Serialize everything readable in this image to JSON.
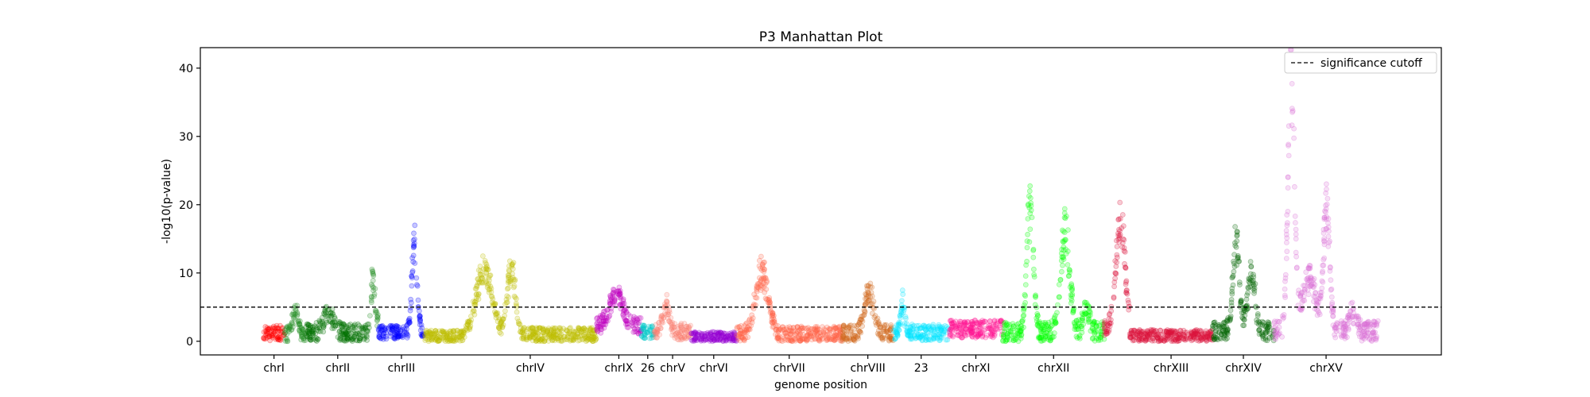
{
  "chart_data": {
    "type": "scatter",
    "title": "P3 Manhattan Plot",
    "xlabel": "genome position",
    "ylabel": "-log10(p-value)",
    "ylim": [
      -2,
      43
    ],
    "yticks": [
      0,
      10,
      20,
      30,
      40
    ],
    "grid": false,
    "legend": {
      "placement": "top-right",
      "entries": [
        {
          "label": "significance cutoff",
          "style": "dashed",
          "color": "#000000"
        }
      ]
    },
    "threshold": {
      "value": 5,
      "style": "dashed",
      "color": "#000000"
    },
    "chromosomes": [
      {
        "label": "chrI",
        "show_label": true,
        "color": "#ff0000",
        "start": 0,
        "end": 23,
        "baseline": 1.0,
        "noise": 1.3,
        "peaks": []
      },
      {
        "label": "",
        "show_label": false,
        "color": "#228b22",
        "start": 23,
        "end": 47,
        "baseline": 0.8,
        "noise": 1.2,
        "peaks": [
          [
            35,
            3.5,
            5
          ]
        ]
      },
      {
        "label": "chrII",
        "show_label": true,
        "color": "#007000",
        "start": 47,
        "end": 117,
        "baseline": 1.2,
        "noise": 1.4,
        "peaks": [
          [
            72,
            3,
            8
          ]
        ]
      },
      {
        "label": "",
        "show_label": false,
        "color": "#228b22",
        "start": 117,
        "end": 127,
        "baseline": 3.0,
        "noise": 1.5,
        "peaks": [
          [
            121,
            6,
            3
          ]
        ]
      },
      {
        "label": "chrIII",
        "show_label": true,
        "color": "#0000ff",
        "start": 127,
        "end": 178,
        "baseline": 1.3,
        "noise": 1.0,
        "peaks": [
          [
            167,
            13.5,
            4
          ]
        ]
      },
      {
        "label": "",
        "show_label": false,
        "color": "#bdbd00",
        "start": 178,
        "end": 222,
        "baseline": 0.8,
        "noise": 0.8,
        "peaks": []
      },
      {
        "label": "chrIV",
        "show_label": true,
        "color": "#bdbd00",
        "start": 222,
        "end": 368,
        "baseline": 1.0,
        "noise": 1.0,
        "peaks": [
          [
            244,
            9.5,
            12
          ],
          [
            274,
            10,
            6
          ]
        ]
      },
      {
        "label": "chrIX",
        "show_label": true,
        "color": "#c000c0",
        "start": 368,
        "end": 418,
        "baseline": 2.3,
        "noise": 1.3,
        "peaks": [
          [
            390,
            4.5,
            10
          ]
        ]
      },
      {
        "label": "26",
        "show_label": true,
        "color": "#00c8c8",
        "start": 418,
        "end": 432,
        "baseline": 1.4,
        "noise": 1.0,
        "peaks": []
      },
      {
        "label": "chrV",
        "show_label": true,
        "color": "#fa8072",
        "start": 432,
        "end": 473,
        "baseline": 1.4,
        "noise": 1.2,
        "peaks": [
          [
            445,
            4,
            5
          ]
        ]
      },
      {
        "label": "chrVI",
        "show_label": true,
        "color": "#9400d3",
        "start": 473,
        "end": 523,
        "baseline": 0.6,
        "noise": 0.8,
        "peaks": []
      },
      {
        "label": "chrVII",
        "show_label": true,
        "color": "#ff6347",
        "start": 523,
        "end": 640,
        "baseline": 1.0,
        "noise": 1.2,
        "peaks": [
          [
            551,
            9,
            10
          ]
        ]
      },
      {
        "label": "chrVIII",
        "show_label": true,
        "color": "#d2691e",
        "start": 640,
        "end": 697,
        "baseline": 1.2,
        "noise": 1.2,
        "peaks": [
          [
            670,
            6,
            7
          ]
        ]
      },
      {
        "label": "23",
        "show_label": true,
        "color": "#00e5ff",
        "start": 697,
        "end": 758,
        "baseline": 1.3,
        "noise": 1.2,
        "peaks": [
          [
            707,
            4.5,
            3
          ]
        ]
      },
      {
        "label": "chrXI",
        "show_label": true,
        "color": "#ff1493",
        "start": 758,
        "end": 818,
        "baseline": 1.8,
        "noise": 1.3,
        "peaks": []
      },
      {
        "label": "chrXII",
        "show_label": true,
        "color": "#00ff00",
        "start": 818,
        "end": 930,
        "baseline": 1.3,
        "noise": 1.5,
        "peaks": [
          [
            848,
            18,
            5
          ],
          [
            887,
            14,
            7
          ],
          [
            910,
            3.5,
            5
          ]
        ]
      },
      {
        "label": "",
        "show_label": false,
        "color": "#dc143c",
        "start": 930,
        "end": 958,
        "baseline": 2.0,
        "noise": 1.2,
        "peaks": [
          [
            948,
            16,
            7
          ]
        ]
      },
      {
        "label": "chrXIII",
        "show_label": true,
        "color": "#dc143c",
        "start": 958,
        "end": 1050,
        "baseline": 0.8,
        "noise": 0.9,
        "peaks": []
      },
      {
        "label": "chrXIV",
        "show_label": true,
        "color": "#006400",
        "start": 1050,
        "end": 1118,
        "baseline": 1.5,
        "noise": 1.4,
        "peaks": [
          [
            1076,
            13,
            5
          ],
          [
            1093,
            8,
            6
          ]
        ]
      },
      {
        "label": "chrXV",
        "show_label": true,
        "color": "#da70d6",
        "start": 1118,
        "end": 1233,
        "baseline": 1.5,
        "noise": 1.5,
        "peaks": [
          [
            1137,
            37,
            5
          ],
          [
            1157,
            8,
            10
          ],
          [
            1176,
            18,
            5
          ],
          [
            1205,
            3,
            5
          ]
        ]
      }
    ],
    "x_range": [
      -70,
      1303
    ]
  }
}
